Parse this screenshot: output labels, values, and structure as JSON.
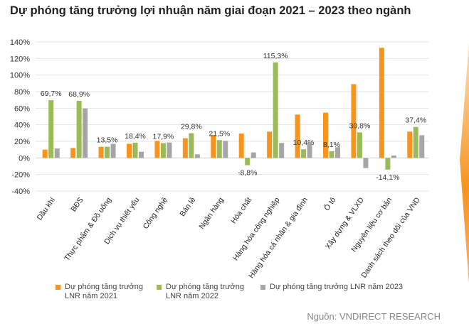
{
  "chart_data": {
    "type": "bar",
    "title": "Dự phóng tăng trưởng lợi nhuận năm giai đoạn 2021 – 2023 theo ngành",
    "xlabel": "",
    "ylabel": "",
    "ylim": [
      -40,
      140
    ],
    "yticks": [
      -40,
      -20,
      0,
      20,
      40,
      60,
      80,
      100,
      120,
      140
    ],
    "ytick_labels": [
      "-40%",
      "-20%",
      "0%",
      "20%",
      "40%",
      "60%",
      "80%",
      "100%",
      "120%",
      "140%"
    ],
    "grid": true,
    "legend_position": "bottom",
    "categories": [
      "Dầu khí",
      "BĐS",
      "Thực phẩm & Đồ uống",
      "Dịch vụ thiết yếu",
      "Công nghệ",
      "Bán lẻ",
      "Ngân hàng",
      "Hóa chất",
      "Hàng hóa công nghiệp",
      "Hàng hóa cá nhân & gia đình",
      "Ô tô",
      "Xây dựng & VLXD",
      "Nguyên liệu cơ bản",
      "Danh sách theo dõi của VND"
    ],
    "series": [
      {
        "name": "Dự phóng tăng trưởng LNR năm 2021",
        "color": "#F7941D",
        "values": [
          10,
          12,
          13.4,
          17,
          20.6,
          23.7,
          27.7,
          29.4,
          31.7,
          52.3,
          54.6,
          89,
          132.9,
          31.7
        ]
      },
      {
        "name": "Dự phóng tăng trưởng LNR năm 2022",
        "color": "#9BBB59",
        "values": [
          69.7,
          68.9,
          13.5,
          18.4,
          17.9,
          29.8,
          21.5,
          -8.8,
          115.3,
          10.4,
          8.1,
          30.8,
          -14.1,
          37.4
        ],
        "labels": [
          "69,7%",
          "68,9%",
          "13,5%",
          "18,4%",
          "17,9%",
          "29,8%",
          "21,5%",
          "-8,8%",
          "115,3%",
          "10,4%",
          "8,1%",
          "30,8%",
          "-14,1%",
          "37,4%"
        ]
      },
      {
        "name": "Dự phóng tăng trưởng LNR năm 2023",
        "color": "#A6A6A6",
        "values": [
          11.4,
          59.7,
          17,
          7.4,
          18.6,
          4.3,
          20.6,
          6.6,
          18,
          18.6,
          12.9,
          -12.3,
          2.9,
          27.4
        ]
      }
    ],
    "source": "Nguồn: VNDIRECT RESEARCH"
  }
}
